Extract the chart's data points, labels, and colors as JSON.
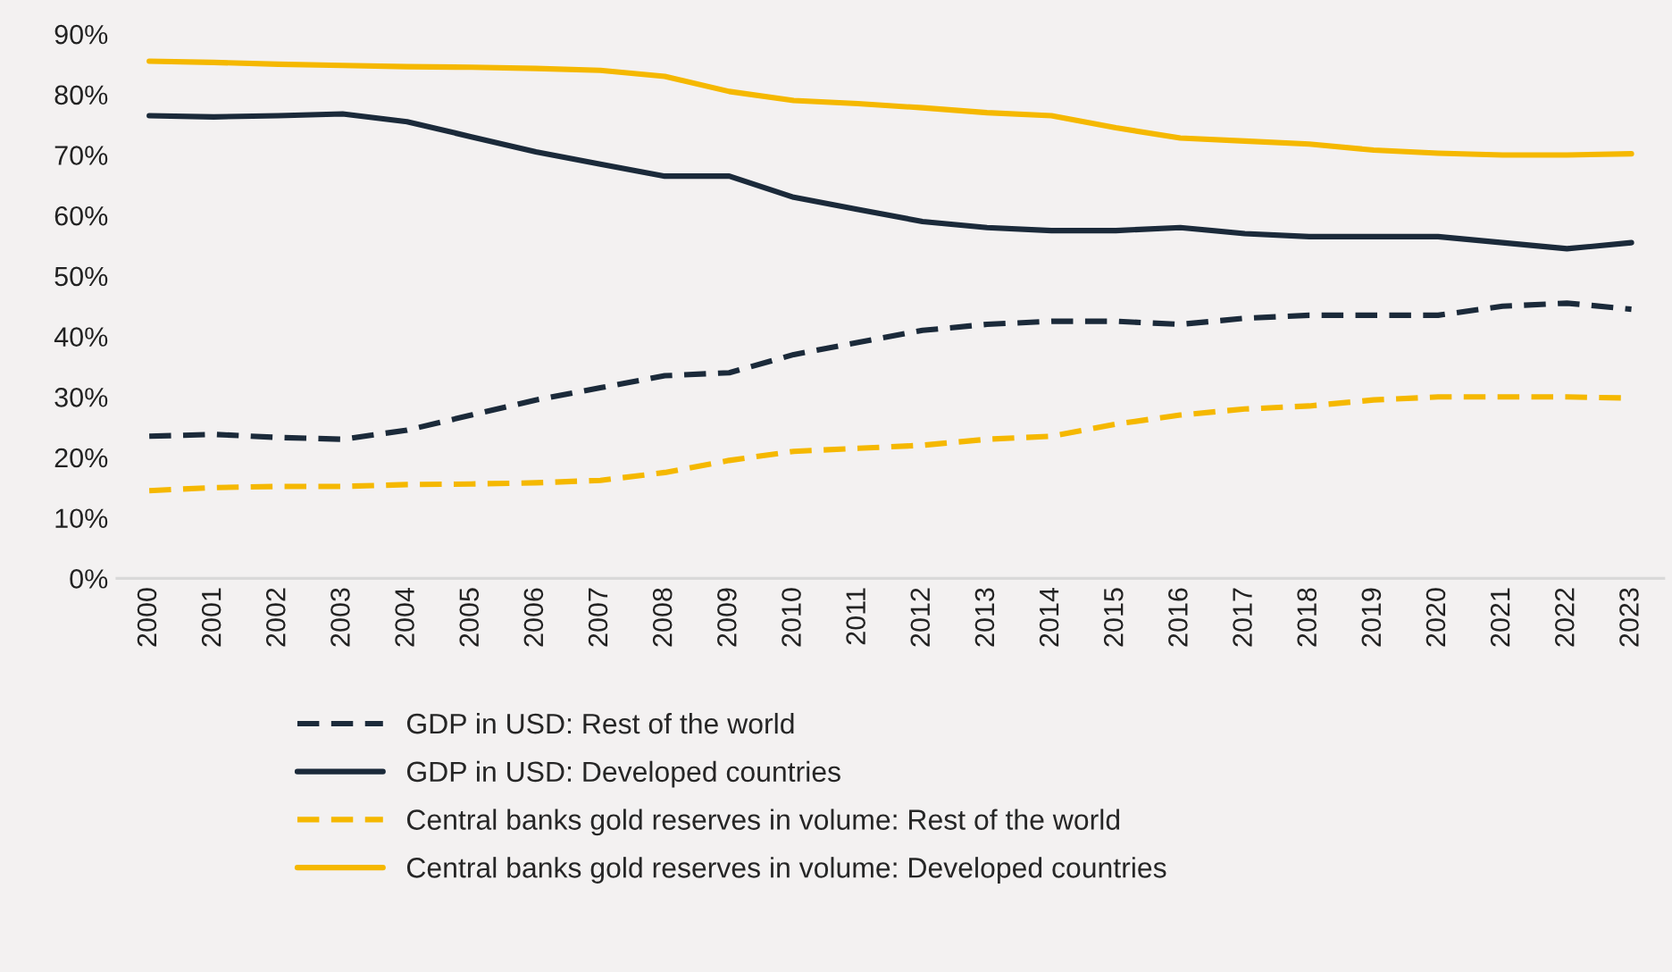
{
  "chart_data": {
    "type": "line",
    "categories": [
      "2000",
      "2001",
      "2002",
      "2003",
      "2004",
      "2005",
      "2006",
      "2007",
      "2008",
      "2009",
      "2010",
      "2011",
      "2012",
      "2013",
      "2014",
      "2015",
      "2016",
      "2017",
      "2018",
      "2019",
      "2020",
      "2021",
      "2022",
      "2023"
    ],
    "ylim": [
      0,
      90
    ],
    "yticks": [
      {
        "value": 0,
        "label": "0%"
      },
      {
        "value": 10,
        "label": "10%"
      },
      {
        "value": 20,
        "label": "20%"
      },
      {
        "value": 30,
        "label": "30%"
      },
      {
        "value": 40,
        "label": "40%"
      },
      {
        "value": 50,
        "label": "50%"
      },
      {
        "value": 60,
        "label": "60%"
      },
      {
        "value": 70,
        "label": "70%"
      },
      {
        "value": 80,
        "label": "80%"
      },
      {
        "value": 90,
        "label": "90%"
      }
    ],
    "grid": false,
    "legend": "bottom",
    "series": [
      {
        "name": "GDP in USD: Rest of the world",
        "color": "#1b2a3a",
        "line_style": "dashed",
        "values": [
          23.5,
          23.8,
          23.3,
          23.0,
          24.5,
          27,
          29.5,
          31.5,
          33.5,
          34,
          37,
          39,
          41,
          42,
          42.5,
          42.5,
          42,
          43,
          43.5,
          43.5,
          43.5,
          45,
          45.5,
          44.5
        ]
      },
      {
        "name": "GDP in USD: Developed countries",
        "color": "#1b2a3a",
        "line_style": "solid",
        "values": [
          76.5,
          76.3,
          76.5,
          76.8,
          75.5,
          73,
          70.5,
          68.5,
          66.5,
          66.5,
          63,
          61,
          59,
          58,
          57.5,
          57.5,
          58,
          57,
          56.5,
          56.5,
          56.5,
          55.5,
          54.5,
          55.5
        ]
      },
      {
        "name": "Central banks gold reserves in volume: Rest of the world",
        "color": "#f5b800",
        "line_style": "dashed",
        "values": [
          14.5,
          15,
          15.2,
          15.2,
          15.5,
          15.6,
          15.8,
          16.2,
          17.5,
          19.5,
          21,
          21.5,
          22,
          23,
          23.5,
          25.5,
          27,
          28,
          28.5,
          29.5,
          30,
          30,
          30,
          29.8
        ]
      },
      {
        "name": "Central banks gold reserves in volume: Developed countries",
        "color": "#f5b800",
        "line_style": "solid",
        "values": [
          85.5,
          85.3,
          85,
          84.8,
          84.6,
          84.5,
          84.3,
          84,
          83,
          80.5,
          79,
          78.5,
          77.8,
          77,
          76.5,
          74.5,
          72.8,
          72.3,
          71.8,
          70.8,
          70.3,
          70,
          70,
          70.2
        ]
      }
    ]
  }
}
